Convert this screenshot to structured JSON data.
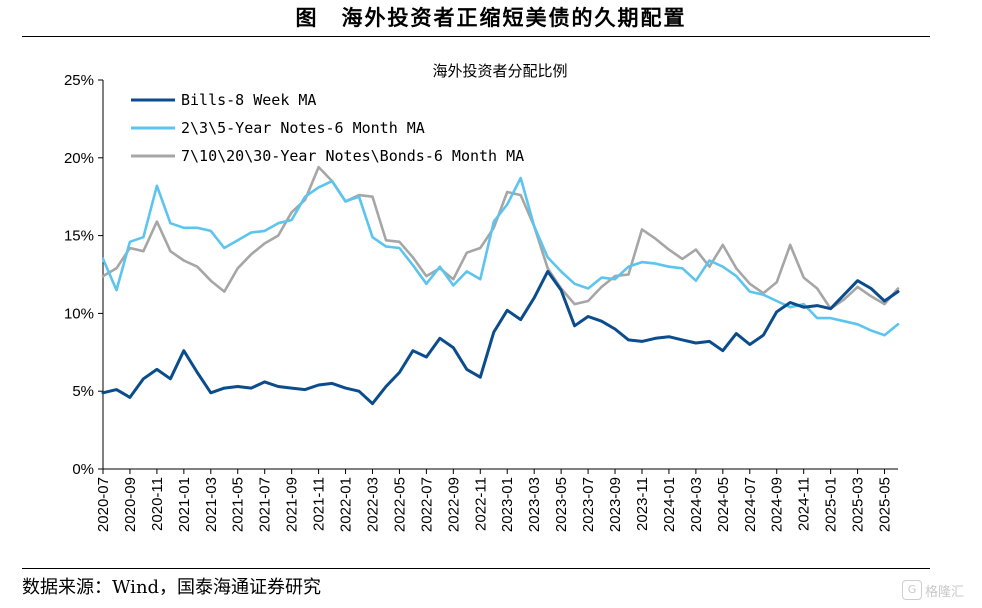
{
  "figure": {
    "title": "图　海外投资者正缩短美债的久期配置",
    "source": "数据来源：Wind，国泰海通证券研究",
    "watermark": "格隆汇"
  },
  "chart_data": {
    "type": "line",
    "title": "海外投资者分配比例",
    "ylim": [
      0,
      25
    ],
    "yticks": [
      "0%",
      "5%",
      "10%",
      "15%",
      "20%",
      "25%"
    ],
    "xlim": [
      "2020-07",
      "2025-06"
    ],
    "xticks": [
      "2020-07",
      "2020-09",
      "2020-11",
      "2021-01",
      "2021-03",
      "2021-05",
      "2021-07",
      "2021-09",
      "2021-11",
      "2022-01",
      "2022-03",
      "2022-05",
      "2022-07",
      "2022-09",
      "2022-11",
      "2023-01",
      "2023-03",
      "2023-05",
      "2023-07",
      "2023-09",
      "2023-11",
      "2024-01",
      "2024-03",
      "2024-05",
      "2024-07",
      "2024-09",
      "2024-11",
      "2025-01",
      "2025-03",
      "2025-05"
    ],
    "legend_position": "top-left",
    "grid": false,
    "series": [
      {
        "name": "Bills-8 Week MA",
        "color": "#0b4c8c",
        "points": [
          [
            "2020-07",
            4.9
          ],
          [
            "2020-08",
            5.1
          ],
          [
            "2020-09",
            4.6
          ],
          [
            "2020-10",
            5.8
          ],
          [
            "2020-11",
            6.4
          ],
          [
            "2020-12",
            5.8
          ],
          [
            "2021-01",
            7.6
          ],
          [
            "2021-02",
            6.2
          ],
          [
            "2021-03",
            4.9
          ],
          [
            "2021-04",
            5.2
          ],
          [
            "2021-05",
            5.3
          ],
          [
            "2021-06",
            5.2
          ],
          [
            "2021-07",
            5.6
          ],
          [
            "2021-08",
            5.3
          ],
          [
            "2021-09",
            5.2
          ],
          [
            "2021-10",
            5.1
          ],
          [
            "2021-11",
            5.4
          ],
          [
            "2021-12",
            5.5
          ],
          [
            "2022-01",
            5.2
          ],
          [
            "2022-02",
            5.0
          ],
          [
            "2022-03",
            4.2
          ],
          [
            "2022-04",
            5.3
          ],
          [
            "2022-05",
            6.2
          ],
          [
            "2022-06",
            7.6
          ],
          [
            "2022-07",
            7.2
          ],
          [
            "2022-08",
            8.4
          ],
          [
            "2022-09",
            7.8
          ],
          [
            "2022-10",
            6.4
          ],
          [
            "2022-11",
            5.9
          ],
          [
            "2022-12",
            8.8
          ],
          [
            "2023-01",
            10.2
          ],
          [
            "2023-02",
            9.6
          ],
          [
            "2023-03",
            11.0
          ],
          [
            "2023-04",
            12.7
          ],
          [
            "2023-05",
            11.5
          ],
          [
            "2023-06",
            9.2
          ],
          [
            "2023-07",
            9.8
          ],
          [
            "2023-08",
            9.5
          ],
          [
            "2023-09",
            9.0
          ],
          [
            "2023-10",
            8.3
          ],
          [
            "2023-11",
            8.2
          ],
          [
            "2023-12",
            8.4
          ],
          [
            "2024-01",
            8.5
          ],
          [
            "2024-02",
            8.3
          ],
          [
            "2024-03",
            8.1
          ],
          [
            "2024-04",
            8.2
          ],
          [
            "2024-05",
            7.6
          ],
          [
            "2024-06",
            8.7
          ],
          [
            "2024-07",
            8.0
          ],
          [
            "2024-08",
            8.6
          ],
          [
            "2024-09",
            10.1
          ],
          [
            "2024-10",
            10.7
          ],
          [
            "2024-11",
            10.4
          ],
          [
            "2024-12",
            10.5
          ],
          [
            "2025-01",
            10.3
          ],
          [
            "2025-02",
            11.2
          ],
          [
            "2025-03",
            12.1
          ],
          [
            "2025-04",
            11.6
          ],
          [
            "2025-05",
            10.8
          ],
          [
            "2025-06",
            11.4
          ]
        ]
      },
      {
        "name": "2\\3\\5-Year Notes-6 Month MA",
        "color": "#5bc4ef",
        "points": [
          [
            "2020-07",
            13.5
          ],
          [
            "2020-08",
            11.5
          ],
          [
            "2020-09",
            14.6
          ],
          [
            "2020-10",
            14.9
          ],
          [
            "2020-11",
            18.2
          ],
          [
            "2020-12",
            15.8
          ],
          [
            "2021-01",
            15.5
          ],
          [
            "2021-02",
            15.5
          ],
          [
            "2021-03",
            15.3
          ],
          [
            "2021-04",
            14.2
          ],
          [
            "2021-05",
            14.7
          ],
          [
            "2021-06",
            15.2
          ],
          [
            "2021-07",
            15.3
          ],
          [
            "2021-08",
            15.8
          ],
          [
            "2021-09",
            16.0
          ],
          [
            "2021-10",
            17.5
          ],
          [
            "2021-11",
            18.1
          ],
          [
            "2021-12",
            18.5
          ],
          [
            "2022-01",
            17.2
          ],
          [
            "2022-02",
            17.5
          ],
          [
            "2022-03",
            14.9
          ],
          [
            "2022-04",
            14.3
          ],
          [
            "2022-05",
            14.2
          ],
          [
            "2022-06",
            13.1
          ],
          [
            "2022-07",
            11.9
          ],
          [
            "2022-08",
            13.0
          ],
          [
            "2022-09",
            11.8
          ],
          [
            "2022-10",
            12.7
          ],
          [
            "2022-11",
            12.2
          ],
          [
            "2022-12",
            15.9
          ],
          [
            "2023-01",
            17.0
          ],
          [
            "2023-02",
            18.7
          ],
          [
            "2023-03",
            15.6
          ],
          [
            "2023-04",
            13.6
          ],
          [
            "2023-05",
            12.7
          ],
          [
            "2023-06",
            11.9
          ],
          [
            "2023-07",
            11.6
          ],
          [
            "2023-08",
            12.3
          ],
          [
            "2023-09",
            12.2
          ],
          [
            "2023-10",
            13.0
          ],
          [
            "2023-11",
            13.3
          ],
          [
            "2023-12",
            13.2
          ],
          [
            "2024-01",
            13.0
          ],
          [
            "2024-02",
            12.9
          ],
          [
            "2024-03",
            12.1
          ],
          [
            "2024-04",
            13.4
          ],
          [
            "2024-05",
            13.0
          ],
          [
            "2024-06",
            12.4
          ],
          [
            "2024-07",
            11.4
          ],
          [
            "2024-08",
            11.2
          ],
          [
            "2024-09",
            10.8
          ],
          [
            "2024-10",
            10.4
          ],
          [
            "2024-11",
            10.6
          ],
          [
            "2024-12",
            9.7
          ],
          [
            "2025-01",
            9.7
          ],
          [
            "2025-02",
            9.5
          ],
          [
            "2025-03",
            9.3
          ],
          [
            "2025-04",
            8.9
          ],
          [
            "2025-05",
            8.6
          ],
          [
            "2025-06",
            9.3
          ]
        ]
      },
      {
        "name": "7\\10\\20\\30-Year Notes\\Bonds-6 Month MA",
        "color": "#a6a6a6",
        "points": [
          [
            "2020-07",
            12.4
          ],
          [
            "2020-08",
            12.9
          ],
          [
            "2020-09",
            14.2
          ],
          [
            "2020-10",
            14.0
          ],
          [
            "2020-11",
            15.9
          ],
          [
            "2020-12",
            14.0
          ],
          [
            "2021-01",
            13.4
          ],
          [
            "2021-02",
            13.0
          ],
          [
            "2021-03",
            12.1
          ],
          [
            "2021-04",
            11.4
          ],
          [
            "2021-05",
            12.9
          ],
          [
            "2021-06",
            13.8
          ],
          [
            "2021-07",
            14.5
          ],
          [
            "2021-08",
            15.0
          ],
          [
            "2021-09",
            16.5
          ],
          [
            "2021-10",
            17.3
          ],
          [
            "2021-11",
            19.4
          ],
          [
            "2021-12",
            18.5
          ],
          [
            "2022-01",
            17.2
          ],
          [
            "2022-02",
            17.6
          ],
          [
            "2022-03",
            17.5
          ],
          [
            "2022-04",
            14.7
          ],
          [
            "2022-05",
            14.6
          ],
          [
            "2022-06",
            13.6
          ],
          [
            "2022-07",
            12.4
          ],
          [
            "2022-08",
            12.9
          ],
          [
            "2022-09",
            12.2
          ],
          [
            "2022-10",
            13.9
          ],
          [
            "2022-11",
            14.2
          ],
          [
            "2022-12",
            15.5
          ],
          [
            "2023-01",
            17.8
          ],
          [
            "2023-02",
            17.6
          ],
          [
            "2023-03",
            15.6
          ],
          [
            "2023-04",
            12.9
          ],
          [
            "2023-05",
            11.6
          ],
          [
            "2023-06",
            10.6
          ],
          [
            "2023-07",
            10.8
          ],
          [
            "2023-08",
            11.7
          ],
          [
            "2023-09",
            12.4
          ],
          [
            "2023-10",
            12.5
          ],
          [
            "2023-11",
            15.4
          ],
          [
            "2023-12",
            14.8
          ],
          [
            "2024-01",
            14.1
          ],
          [
            "2024-02",
            13.5
          ],
          [
            "2024-03",
            14.1
          ],
          [
            "2024-04",
            13.0
          ],
          [
            "2024-05",
            14.4
          ],
          [
            "2024-06",
            12.9
          ],
          [
            "2024-07",
            11.9
          ],
          [
            "2024-08",
            11.3
          ],
          [
            "2024-09",
            12.0
          ],
          [
            "2024-10",
            14.4
          ],
          [
            "2024-11",
            12.3
          ],
          [
            "2024-12",
            11.6
          ],
          [
            "2025-01",
            10.3
          ],
          [
            "2025-02",
            10.9
          ],
          [
            "2025-03",
            11.7
          ],
          [
            "2025-04",
            11.1
          ],
          [
            "2025-05",
            10.6
          ],
          [
            "2025-06",
            11.6
          ]
        ]
      }
    ]
  }
}
